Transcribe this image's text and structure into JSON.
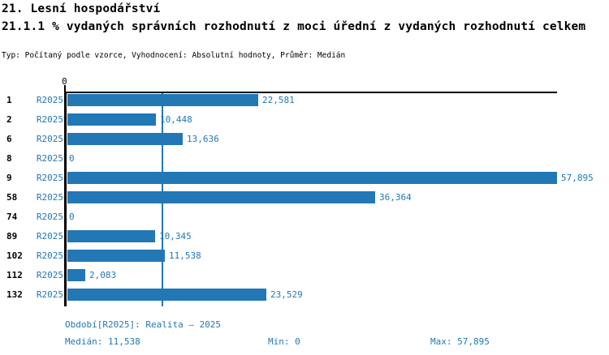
{
  "header": {
    "title": "21. Lesní hospodářství",
    "subtitle": "21.1.1 % vydaných správních rozhodnutí z moci úřední z vydaných rozhodnutí celkem",
    "meta": "Typ: Počítaný podle vzorce, Vyhodnocení: Absolutní hodnoty, Průměr: Medián"
  },
  "chart_data": {
    "type": "bar",
    "orientation": "horizontal",
    "series_label": "R2025",
    "categories": [
      "1",
      "2",
      "6",
      "8",
      "9",
      "58",
      "74",
      "89",
      "102",
      "112",
      "132"
    ],
    "values": [
      22.581,
      10.448,
      13.636,
      0,
      57.895,
      36.364,
      0,
      10.345,
      11.538,
      2.083,
      23.529
    ],
    "value_labels": [
      "22,581",
      "10,448",
      "13,636",
      "0",
      "57,895",
      "36,364",
      "0",
      "10,345",
      "11,538",
      "2,083",
      "23,529"
    ],
    "xlim": [
      0,
      57.895
    ],
    "x_tick_labels": [
      "0"
    ],
    "median_value": 11.538,
    "legend": "none",
    "grid": "single median gridline",
    "colors": {
      "bar": "#2277b5",
      "blue_text": "#2277b5",
      "axis": "#000000"
    }
  },
  "footer": {
    "period": "Období[R2025]: Realita – 2025",
    "median": "Medián: 11,538",
    "min": "Min: 0",
    "max": "Max: 57,895"
  }
}
